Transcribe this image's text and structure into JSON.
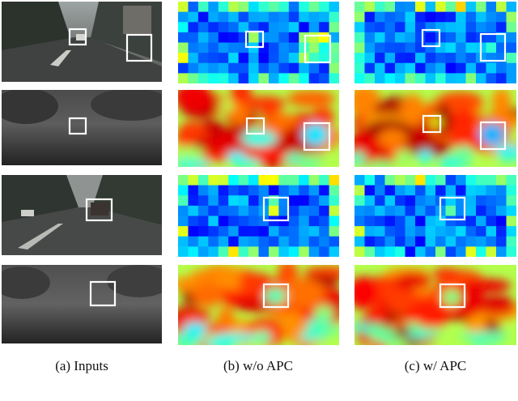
{
  "captions": {
    "inputs": "(a)  Inputs",
    "without_apc": "(b)  w/o APC",
    "with_apc": "(c)  w/  APC"
  },
  "colors": {
    "background": "#ffffff",
    "highlight_box": "#ffffff",
    "heatmap_low": "#1a2fd6",
    "heatmap_mid": "#4fb7e8",
    "heatmap_high": "#d9321f"
  },
  "rows": [
    {
      "input": "street-scene-car",
      "b": "grid-attention",
      "c": "grid-attention"
    },
    {
      "input": "depth-map",
      "b": "smooth-heatmap",
      "c": "smooth-heatmap"
    },
    {
      "input": "street-scene-van",
      "b": "grid-attention",
      "c": "grid-attention"
    },
    {
      "input": "depth-map",
      "b": "smooth-heatmap",
      "c": "smooth-heatmap"
    }
  ]
}
